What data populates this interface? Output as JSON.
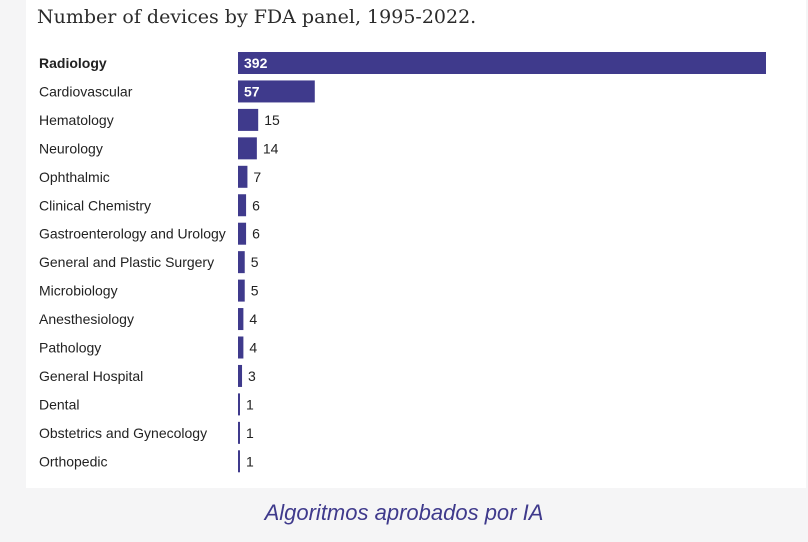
{
  "chart_data": {
    "type": "bar",
    "orientation": "horizontal",
    "title": "Number of devices by FDA panel, 1995-2022.",
    "categories": [
      "Radiology",
      "Cardiovascular",
      "Hematology",
      "Neurology",
      "Ophthalmic",
      "Clinical Chemistry",
      "Gastroenterology and Urology",
      "General and Plastic Surgery",
      "Microbiology",
      "Anesthesiology",
      "Pathology",
      "General Hospital",
      "Dental",
      "Obstetrics and Gynecology",
      "Orthopedic"
    ],
    "values": [
      392,
      57,
      15,
      14,
      7,
      6,
      6,
      5,
      5,
      4,
      4,
      3,
      1,
      1,
      1
    ],
    "xlim": [
      0,
      392
    ],
    "bold_category": "Radiology",
    "grid": false,
    "bar_color": "#3f3a8c"
  },
  "caption": "Algoritmos aprobados por IA"
}
